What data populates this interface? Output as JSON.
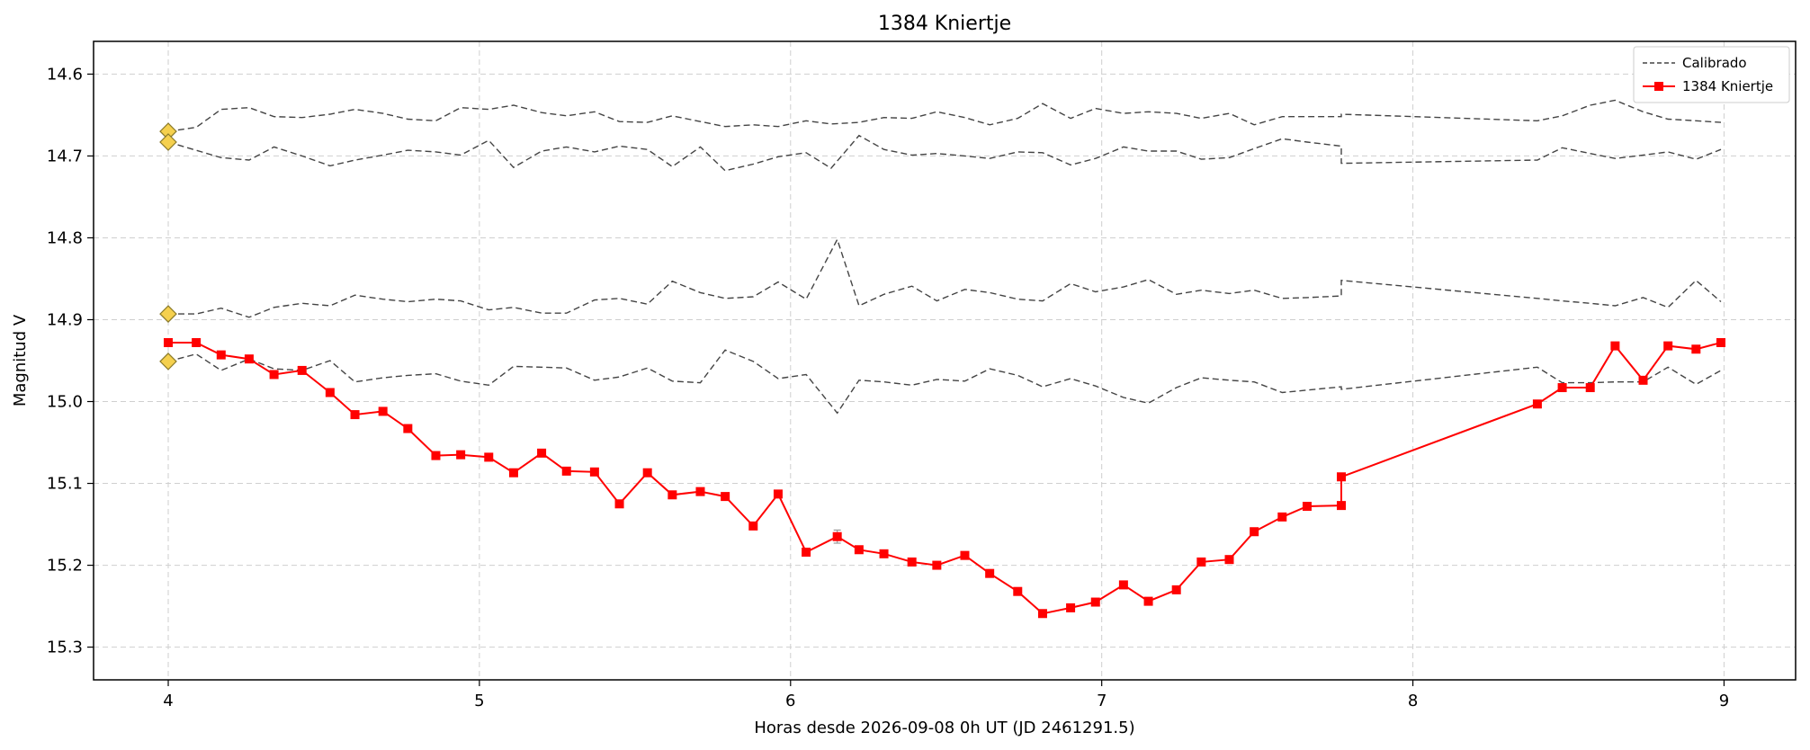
{
  "chart_data": {
    "type": "line",
    "title": "1384 Kniertje",
    "xlabel": "Horas desde 2026-09-08 0h UT (JD 2461291.5)",
    "ylabel": "Magnitud V",
    "xlim": [
      3.76,
      9.23
    ],
    "ylim": [
      15.34,
      14.56
    ],
    "y_inverted": true,
    "xticks": [
      4,
      5,
      6,
      7,
      8,
      9
    ],
    "yticks": [
      14.6,
      14.7,
      14.8,
      14.9,
      15.0,
      15.1,
      15.2,
      15.3
    ],
    "xtick_labels": [
      "4",
      "5",
      "6",
      "7",
      "8",
      "9"
    ],
    "ytick_labels": [
      "14.6",
      "14.7",
      "14.8",
      "14.9",
      "15.0",
      "15.1",
      "15.2",
      "15.3"
    ],
    "grid": true,
    "legend_position": "top-right",
    "legend": [
      "Calibrado",
      "1384 Kniertje"
    ],
    "colors": {
      "target": "#ff0000",
      "calibrated": "#444444",
      "marker_fill": "#f5d04e",
      "marker_edge": "#8a7a2a"
    },
    "calibrated_series": [
      {
        "x": [
          4.0,
          4.09,
          4.17,
          4.26,
          4.34,
          4.43,
          4.52,
          4.6,
          4.69,
          4.77,
          4.86,
          4.94,
          5.03,
          5.11,
          5.2,
          5.28,
          5.37,
          5.45,
          5.54,
          5.62,
          5.71,
          5.79,
          5.88,
          5.96,
          6.05,
          6.13,
          6.22,
          6.3,
          6.39,
          6.47,
          6.56,
          6.64,
          6.73,
          6.81,
          6.9,
          6.98,
          7.07,
          7.15,
          7.24,
          7.32,
          7.41,
          7.49,
          7.58,
          7.66,
          7.77,
          7.77,
          8.4,
          8.48,
          8.57,
          8.65,
          8.74,
          8.82,
          8.91,
          8.99
        ],
        "y": [
          14.67,
          14.665,
          14.643,
          14.641,
          14.652,
          14.653,
          14.649,
          14.643,
          14.648,
          14.655,
          14.657,
          14.641,
          14.643,
          14.638,
          14.647,
          14.651,
          14.646,
          14.658,
          14.659,
          14.651,
          14.658,
          14.664,
          14.662,
          14.664,
          14.657,
          14.661,
          14.659,
          14.653,
          14.654,
          14.646,
          14.653,
          14.662,
          14.654,
          14.636,
          14.654,
          14.642,
          14.648,
          14.646,
          14.648,
          14.654,
          14.648,
          14.662,
          14.652,
          14.652,
          14.652,
          14.649,
          14.657,
          14.651,
          14.638,
          14.632,
          14.646,
          14.655,
          14.657,
          14.659
        ]
      },
      {
        "x": [
          4.0,
          4.09,
          4.17,
          4.26,
          4.34,
          4.43,
          4.52,
          4.6,
          4.69,
          4.77,
          4.86,
          4.94,
          5.03,
          5.11,
          5.2,
          5.28,
          5.37,
          5.45,
          5.54,
          5.62,
          5.71,
          5.79,
          5.88,
          5.96,
          6.05,
          6.13,
          6.22,
          6.3,
          6.39,
          6.47,
          6.56,
          6.64,
          6.73,
          6.81,
          6.9,
          6.98,
          7.07,
          7.15,
          7.24,
          7.32,
          7.41,
          7.49,
          7.58,
          7.66,
          7.77,
          7.77,
          8.4,
          8.48,
          8.57,
          8.65,
          8.74,
          8.82,
          8.91,
          8.99
        ],
        "y": [
          14.683,
          14.693,
          14.702,
          14.705,
          14.689,
          14.7,
          14.712,
          14.705,
          14.699,
          14.693,
          14.695,
          14.699,
          14.681,
          14.714,
          14.694,
          14.689,
          14.695,
          14.688,
          14.692,
          14.713,
          14.689,
          14.718,
          14.71,
          14.701,
          14.696,
          14.715,
          14.675,
          14.692,
          14.699,
          14.697,
          14.7,
          14.703,
          14.695,
          14.696,
          14.711,
          14.703,
          14.689,
          14.694,
          14.694,
          14.704,
          14.702,
          14.691,
          14.679,
          14.683,
          14.688,
          14.709,
          14.705,
          14.69,
          14.697,
          14.703,
          14.699,
          14.695,
          14.704,
          14.692
        ]
      },
      {
        "x": [
          4.0,
          4.09,
          4.17,
          4.26,
          4.34,
          4.43,
          4.52,
          4.6,
          4.69,
          4.77,
          4.86,
          4.94,
          5.03,
          5.11,
          5.2,
          5.28,
          5.37,
          5.45,
          5.54,
          5.62,
          5.71,
          5.79,
          5.88,
          5.96,
          6.05,
          6.15,
          6.22,
          6.3,
          6.39,
          6.47,
          6.56,
          6.64,
          6.73,
          6.81,
          6.9,
          6.98,
          7.07,
          7.15,
          7.24,
          7.32,
          7.41,
          7.49,
          7.58,
          7.66,
          7.77,
          7.77,
          8.4,
          8.48,
          8.57,
          8.65,
          8.74,
          8.82,
          8.91,
          8.99
        ],
        "y": [
          14.893,
          14.893,
          14.886,
          14.897,
          14.885,
          14.88,
          14.883,
          14.87,
          14.875,
          14.878,
          14.875,
          14.877,
          14.888,
          14.885,
          14.892,
          14.892,
          14.876,
          14.874,
          14.881,
          14.853,
          14.867,
          14.874,
          14.872,
          14.854,
          14.875,
          14.802,
          14.883,
          14.869,
          14.859,
          14.877,
          14.863,
          14.867,
          14.875,
          14.877,
          14.856,
          14.866,
          14.86,
          14.851,
          14.869,
          14.864,
          14.868,
          14.864,
          14.874,
          14.873,
          14.871,
          14.852,
          14.874,
          14.877,
          14.88,
          14.883,
          14.873,
          14.885,
          14.852,
          14.878
        ]
      },
      {
        "x": [
          4.0,
          4.09,
          4.17,
          4.26,
          4.34,
          4.43,
          4.52,
          4.6,
          4.69,
          4.77,
          4.86,
          4.94,
          5.03,
          5.11,
          5.2,
          5.28,
          5.37,
          5.45,
          5.54,
          5.62,
          5.71,
          5.79,
          5.88,
          5.96,
          6.05,
          6.15,
          6.22,
          6.3,
          6.39,
          6.47,
          6.56,
          6.64,
          6.73,
          6.81,
          6.9,
          6.98,
          7.07,
          7.15,
          7.24,
          7.32,
          7.41,
          7.49,
          7.58,
          7.66,
          7.77,
          7.77,
          8.4,
          8.48,
          8.57,
          8.65,
          8.74,
          8.82,
          8.91,
          8.99
        ],
        "y": [
          14.951,
          14.942,
          14.962,
          14.948,
          14.96,
          14.962,
          14.95,
          14.976,
          14.971,
          14.968,
          14.966,
          14.975,
          14.98,
          14.957,
          14.958,
          14.959,
          14.974,
          14.97,
          14.959,
          14.975,
          14.977,
          14.937,
          14.951,
          14.972,
          14.967,
          15.014,
          14.974,
          14.976,
          14.98,
          14.973,
          14.975,
          14.96,
          14.968,
          14.982,
          14.972,
          14.981,
          14.995,
          15.002,
          14.983,
          14.971,
          14.974,
          14.976,
          14.989,
          14.986,
          14.982,
          14.985,
          14.958,
          14.977,
          14.977,
          14.976,
          14.976,
          14.958,
          14.979,
          14.962
        ]
      }
    ],
    "start_markers": {
      "x": [
        4.0,
        4.0,
        4.0,
        4.0
      ],
      "y": [
        14.67,
        14.683,
        14.893,
        14.951
      ]
    },
    "target_series": {
      "name": "1384 Kniertje",
      "x": [
        4.0,
        4.09,
        4.17,
        4.26,
        4.34,
        4.43,
        4.52,
        4.6,
        4.69,
        4.77,
        4.86,
        4.94,
        5.03,
        5.11,
        5.2,
        5.28,
        5.37,
        5.45,
        5.54,
        5.62,
        5.71,
        5.79,
        5.88,
        5.96,
        6.05,
        6.15,
        6.22,
        6.3,
        6.39,
        6.47,
        6.56,
        6.64,
        6.73,
        6.81,
        6.9,
        6.98,
        7.07,
        7.15,
        7.24,
        7.32,
        7.41,
        7.49,
        7.58,
        7.66,
        7.77,
        7.77,
        8.4,
        8.48,
        8.57,
        8.65,
        8.74,
        8.82,
        8.91,
        8.99
      ],
      "y": [
        14.928,
        14.928,
        14.943,
        14.948,
        14.967,
        14.962,
        14.989,
        15.016,
        15.012,
        15.033,
        15.066,
        15.065,
        15.068,
        15.087,
        15.063,
        15.085,
        15.086,
        15.125,
        15.087,
        15.114,
        15.11,
        15.116,
        15.152,
        15.113,
        15.184,
        15.165,
        15.181,
        15.186,
        15.196,
        15.2,
        15.188,
        15.21,
        15.232,
        15.259,
        15.252,
        15.245,
        15.224,
        15.244,
        15.23,
        15.196,
        15.193,
        15.159,
        15.141,
        15.128,
        15.127,
        15.092,
        15.003,
        14.983,
        14.983,
        14.932,
        14.974,
        14.932,
        14.936,
        14.928
      ],
      "error": [
        0.003,
        0.003,
        0.003,
        0.003,
        0.003,
        0.003,
        0.003,
        0.003,
        0.003,
        0.003,
        0.003,
        0.003,
        0.003,
        0.003,
        0.003,
        0.003,
        0.003,
        0.004,
        0.003,
        0.003,
        0.003,
        0.003,
        0.003,
        0.003,
        0.004,
        0.008,
        0.004,
        0.004,
        0.004,
        0.004,
        0.004,
        0.004,
        0.004,
        0.004,
        0.004,
        0.004,
        0.004,
        0.004,
        0.004,
        0.004,
        0.004,
        0.004,
        0.004,
        0.004,
        0.004,
        0.004,
        0.003,
        0.003,
        0.003,
        0.003,
        0.003,
        0.003,
        0.003,
        0.003
      ]
    }
  }
}
